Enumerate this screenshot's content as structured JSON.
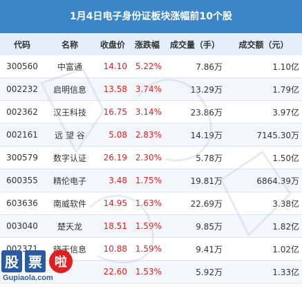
{
  "title": "1月4日电子身份证板块涨幅前10个股",
  "columns": [
    "代码",
    "名称",
    "收盘价",
    "涨跌幅",
    "成交量（手）",
    "成交额（元）"
  ],
  "rows": [
    {
      "code": "300560",
      "name": "中富通",
      "price": "14.10",
      "change": "5.22%",
      "volume": "7.86万",
      "amount": "1.10亿"
    },
    {
      "code": "002232",
      "name": "启明信息",
      "price": "13.58",
      "change": "3.74%",
      "volume": "13.29万",
      "amount": "1.79亿"
    },
    {
      "code": "002362",
      "name": "汉王科技",
      "price": "16.75",
      "change": "3.14%",
      "volume": "23.86万",
      "amount": "3.97亿"
    },
    {
      "code": "002161",
      "name": "远 望 谷",
      "price": "5.08",
      "change": "2.83%",
      "volume": "14.19万",
      "amount": "7145.30万"
    },
    {
      "code": "300579",
      "name": "数字认证",
      "price": "26.19",
      "change": "2.30%",
      "volume": "5.78万",
      "amount": "1.50亿"
    },
    {
      "code": "600355",
      "name": "精伦电子",
      "price": "3.48",
      "change": "1.75%",
      "volume": "19.81万",
      "amount": "6864.39万"
    },
    {
      "code": "603636",
      "name": "南威软件",
      "price": "14.95",
      "change": "1.63%",
      "volume": "22.69万",
      "amount": "3.38亿"
    },
    {
      "code": "003040",
      "name": "楚天龙",
      "price": "18.51",
      "change": "1.59%",
      "volume": "9.85万",
      "amount": "1.82亿"
    },
    {
      "code": "002371",
      "name": "晓天信息",
      "price": "10.88",
      "change": "1.59%",
      "volume": "9.41万",
      "amount": "1.02亿"
    },
    {
      "code": "",
      "name": "",
      "price": "22.60",
      "change": "1.53%",
      "volume": "5.92万",
      "amount": "1.33亿"
    }
  ],
  "logo": {
    "brand": "股票啦",
    "site": "Gupiaola.com"
  },
  "colors": {
    "title_bg": "#3a86c8",
    "header_bg": "#e4eef8",
    "up": "#e02020"
  }
}
